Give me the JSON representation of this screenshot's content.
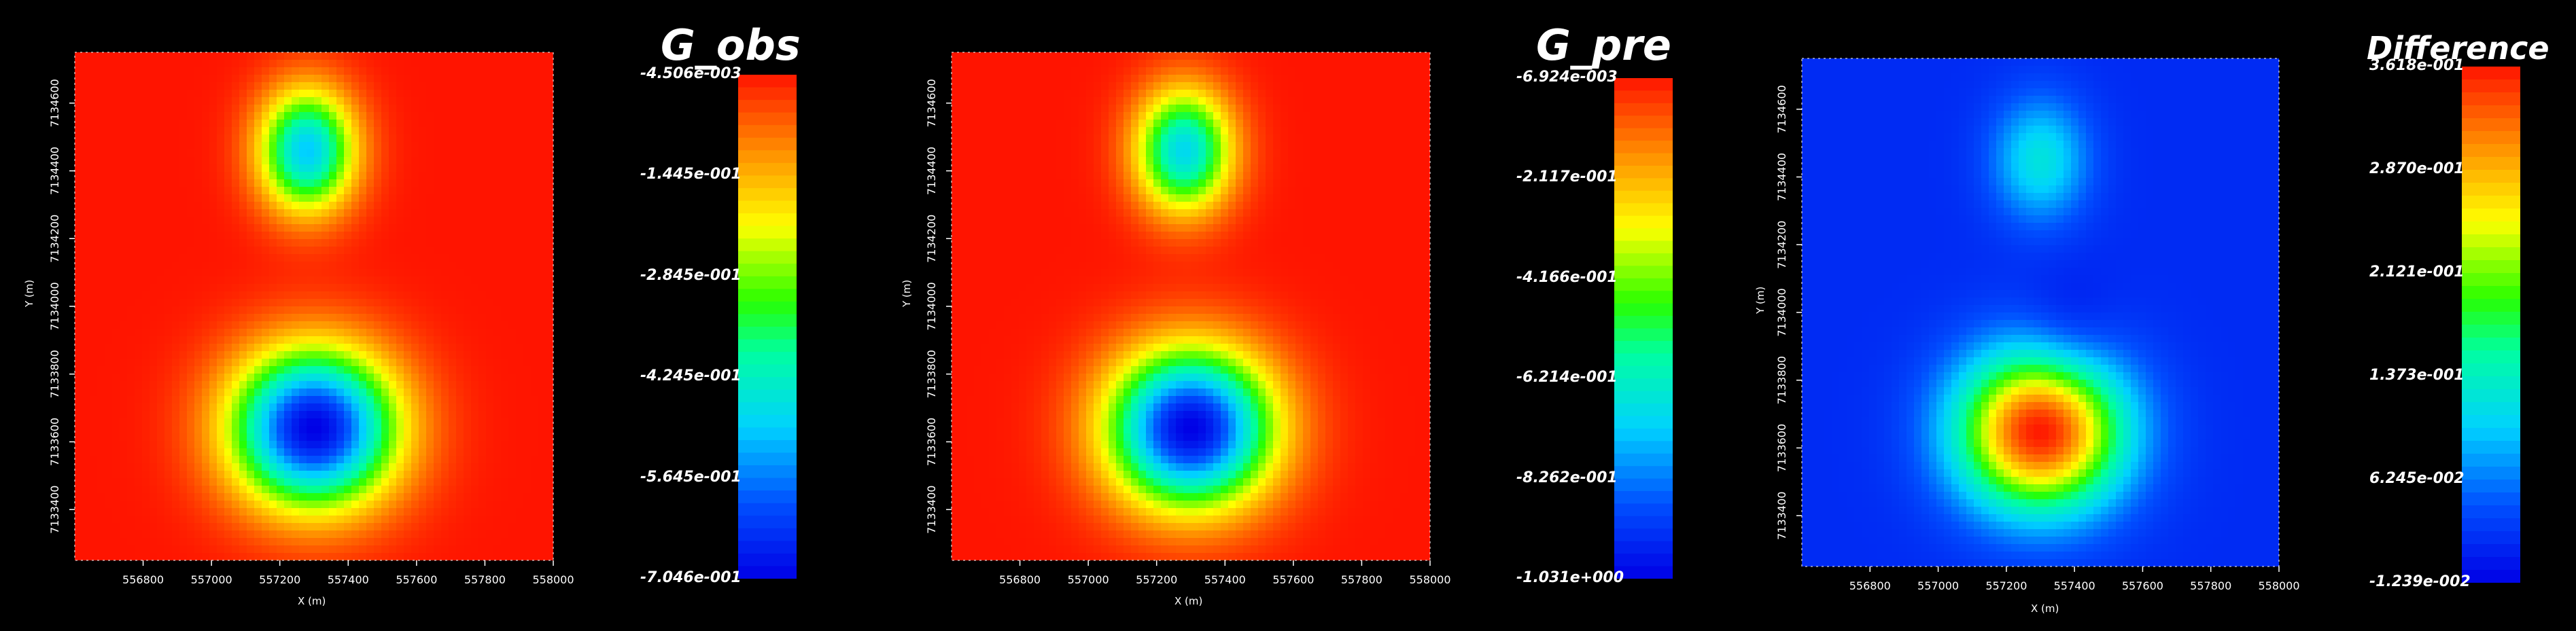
{
  "chart_data": [
    {
      "type": "heatmap",
      "title": "G_obs",
      "xlabel": "X (m)",
      "ylabel": "Y (m)",
      "x_ticks": [
        "556800",
        "557000",
        "557200",
        "557400",
        "557600",
        "557800",
        "558000"
      ],
      "y_ticks": [
        "7133400",
        "7133600",
        "7133800",
        "7134000",
        "7134200",
        "7134400",
        "7134600"
      ],
      "xlim": [
        556600,
        558000
      ],
      "ylim": [
        7133250,
        7134750
      ],
      "colorbar_ticks": [
        "-4.506e-003",
        "-1.445e-001",
        "-2.845e-001",
        "-4.245e-001",
        "-5.645e-001",
        "-7.046e-001"
      ],
      "colorbar_range": [
        -0.7046,
        -0.004506
      ],
      "anomalies": [
        {
          "x": 557300,
          "y": 7133640,
          "value": -0.7046
        },
        {
          "x": 557280,
          "y": 7134460,
          "value": -0.5
        }
      ]
    },
    {
      "type": "heatmap",
      "title": "G_pre",
      "xlabel": "X (m)",
      "ylabel": "Y (m)",
      "x_ticks": [
        "556800",
        "557000",
        "557200",
        "557400",
        "557600",
        "557800",
        "558000"
      ],
      "y_ticks": [
        "7133400",
        "7133600",
        "7133800",
        "7134000",
        "7134200",
        "7134400",
        "7134600"
      ],
      "xlim": [
        556600,
        558000
      ],
      "ylim": [
        7133250,
        7134750
      ],
      "colorbar_ticks": [
        "-6.924e-003",
        "-2.117e-001",
        "-4.166e-001",
        "-6.214e-001",
        "-8.262e-001",
        "-1.031e+000"
      ],
      "colorbar_range": [
        -1.031,
        -0.006924
      ],
      "anomalies": [
        {
          "x": 557300,
          "y": 7133640,
          "value": -1.031
        },
        {
          "x": 557280,
          "y": 7134460,
          "value": -0.7
        }
      ]
    },
    {
      "type": "heatmap",
      "title": "Difference",
      "xlabel": "X (m)",
      "ylabel": "Y (m)",
      "x_ticks": [
        "556800",
        "557000",
        "557200",
        "557400",
        "557600",
        "557800",
        "558000"
      ],
      "y_ticks": [
        "7133400",
        "7133600",
        "7133800",
        "7134000",
        "7134200",
        "7134400",
        "7134600"
      ],
      "xlim": [
        556600,
        558000
      ],
      "ylim": [
        7133250,
        7134750
      ],
      "colorbar_ticks": [
        "3.618e-001",
        "2.870e-001",
        "2.121e-001",
        "1.373e-001",
        "6.245e-002",
        "-1.239e-002"
      ],
      "colorbar_range": [
        -0.01239,
        0.3618
      ],
      "anomalies": [
        {
          "x": 557300,
          "y": 7133650,
          "value": 0.3618
        },
        {
          "x": 557300,
          "y": 7134450,
          "value": 0.12
        },
        {
          "x": 557380,
          "y": 7133910,
          "value": -0.01239
        }
      ]
    }
  ]
}
